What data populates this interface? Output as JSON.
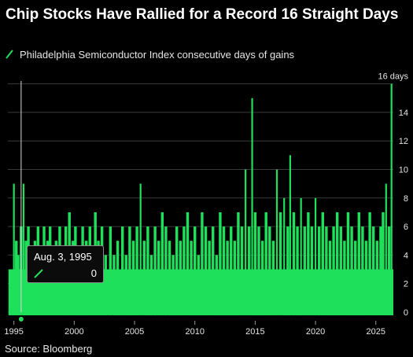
{
  "title": "Chip Stocks Have Rallied for a Record 16 Straight Days",
  "source": "Source: Bloomberg",
  "colors": {
    "series": "#1ee05a",
    "background": "#000000",
    "grid": "#3a3a3a",
    "hover_line": "#d8d8d8"
  },
  "tooltip": {
    "date": "Aug. 3, 1995",
    "value": "0"
  },
  "chart_data": {
    "type": "area",
    "title": "Chip Stocks Have Rallied for a Record 16 Straight Days",
    "xlabel": "",
    "ylabel": "",
    "xlim": [
      1994.5,
      2026.45
    ],
    "ylim": [
      -0.5,
      16.2
    ],
    "y_ticks": [
      0,
      2,
      4,
      6,
      8,
      10,
      12,
      14
    ],
    "y_tick_labels": [
      "0",
      "2",
      "4",
      "6",
      "8",
      "10",
      "12",
      "14"
    ],
    "y_top_label": "16 days",
    "x_ticks": [
      1995,
      2000,
      2005,
      2010,
      2015,
      2020,
      2025
    ],
    "x_tick_labels": [
      "1995",
      "2000",
      "2005",
      "2010",
      "2015",
      "2020",
      "2025"
    ],
    "grid": true,
    "legend_position": "top-left",
    "series": [
      {
        "name": "Philadelphia Semiconductor Index consecutive days of gains",
        "x": [
          1995.0,
          1995.2,
          1995.35,
          1995.6,
          1995.8,
          1996.0,
          1996.2,
          1996.5,
          1996.75,
          1997.0,
          1997.3,
          1997.5,
          1997.8,
          1998.0,
          1998.3,
          1998.5,
          1998.8,
          1999.0,
          1999.3,
          1999.6,
          1999.9,
          2000.1,
          2000.4,
          2000.7,
          2001.0,
          2001.3,
          2001.6,
          2001.75,
          2002.0,
          2002.3,
          2002.6,
          2003.0,
          2003.3,
          2003.6,
          2004.0,
          2004.3,
          2004.6,
          2004.9,
          2005.2,
          2005.5,
          2005.8,
          2006.1,
          2006.4,
          2006.7,
          2007.0,
          2007.3,
          2007.6,
          2007.9,
          2008.2,
          2008.5,
          2008.8,
          2009.1,
          2009.4,
          2009.7,
          2010.0,
          2010.3,
          2010.6,
          2010.9,
          2011.2,
          2011.5,
          2011.8,
          2012.1,
          2012.4,
          2012.7,
          2013.0,
          2013.3,
          2013.6,
          2013.9,
          2014.2,
          2014.5,
          2014.75,
          2015.0,
          2015.3,
          2015.6,
          2015.9,
          2016.2,
          2016.5,
          2016.8,
          2017.1,
          2017.4,
          2017.7,
          2017.9,
          2018.2,
          2018.5,
          2018.8,
          2019.1,
          2019.4,
          2019.7,
          2020.0,
          2020.3,
          2020.6,
          2020.9,
          2021.2,
          2021.5,
          2021.8,
          2022.1,
          2022.4,
          2022.7,
          2023.0,
          2023.3,
          2023.6,
          2023.9,
          2024.2,
          2024.5,
          2024.8,
          2025.1,
          2025.4,
          2025.6,
          2025.85,
          2026.1,
          2026.3
        ],
        "values": [
          9,
          5,
          4,
          6,
          9,
          5,
          6,
          4,
          5,
          6,
          4,
          6,
          5,
          6,
          4,
          5,
          6,
          4,
          6,
          7,
          5,
          6,
          4,
          6,
          5,
          6,
          4,
          7,
          5,
          6,
          4,
          6,
          4,
          5,
          6,
          4,
          6,
          5,
          6,
          9,
          5,
          6,
          4,
          6,
          5,
          7,
          6,
          5,
          4,
          6,
          5,
          6,
          7,
          5,
          6,
          4,
          7,
          6,
          5,
          6,
          4,
          7,
          6,
          5,
          6,
          5,
          7,
          6,
          10,
          6,
          15,
          7,
          6,
          5,
          7,
          6,
          5,
          10,
          7,
          8,
          6,
          11,
          7,
          6,
          8,
          6,
          7,
          6,
          8,
          6,
          7,
          6,
          5,
          6,
          7,
          6,
          5,
          7,
          6,
          5,
          7,
          6,
          5,
          7,
          6,
          5,
          6,
          7,
          9,
          6,
          16
        ]
      }
    ]
  }
}
